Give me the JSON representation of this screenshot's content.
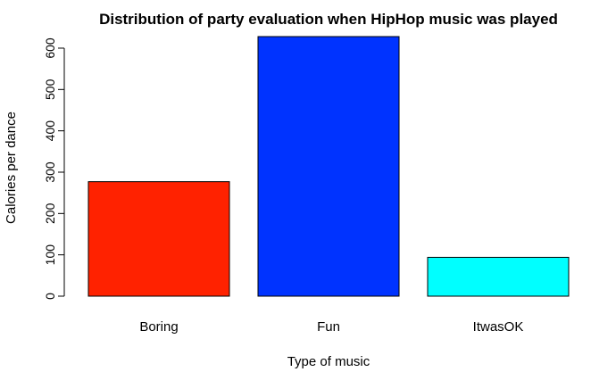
{
  "chart_data": {
    "type": "bar",
    "title": "Distribution of party evaluation when HipHop music was played",
    "xlabel": "Type of music",
    "ylabel": "Calories per dance",
    "categories": [
      "Boring",
      "Fun",
      "ItwasOK"
    ],
    "values": [
      277,
      628,
      94
    ],
    "colors": [
      "#ff2200",
      "#0033ff",
      "#00ffff"
    ],
    "ylim": [
      0,
      628
    ],
    "yticks": [
      0,
      100,
      200,
      300,
      400,
      500,
      600
    ],
    "grid": false,
    "legend": "none"
  }
}
